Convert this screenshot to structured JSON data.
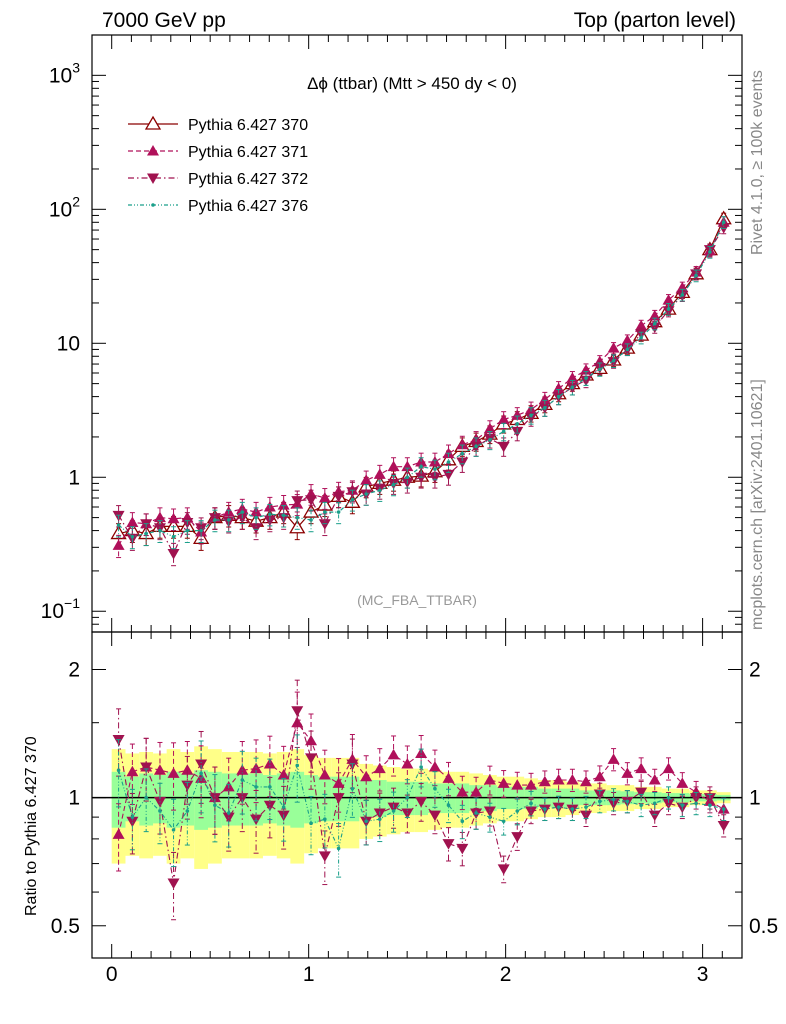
{
  "header": {
    "left": "7000 GeV pp",
    "right": "Top (parton level)"
  },
  "side_labels": {
    "top": "Rivet 4.1.0, ≥ 100k events",
    "bottom": "mcplots.cern.ch [arXiv:2401.10621]"
  },
  "chart_data": [
    {
      "type": "line",
      "panel": "main",
      "title": "Δϕ (ttbar) (Mtt > 450 dy < 0)",
      "watermark": "(MC_FBA_TTBAR)",
      "yscale": "log",
      "xlim": [
        -0.1,
        3.2
      ],
      "ylim": [
        0.07,
        2000
      ],
      "yticks": [
        {
          "value": 0.1,
          "base": "10",
          "exp": "−1"
        },
        {
          "value": 1,
          "base": "1",
          "exp": ""
        },
        {
          "value": 10,
          "base": "10",
          "exp": ""
        },
        {
          "value": 100,
          "base": "10",
          "exp": "2"
        },
        {
          "value": 1000,
          "base": "10",
          "exp": "3"
        }
      ],
      "x": [
        0.035,
        0.105,
        0.175,
        0.245,
        0.314,
        0.384,
        0.454,
        0.524,
        0.594,
        0.663,
        0.733,
        0.803,
        0.873,
        0.942,
        1.012,
        1.082,
        1.152,
        1.222,
        1.292,
        1.361,
        1.431,
        1.501,
        1.571,
        1.641,
        1.71,
        1.78,
        1.85,
        1.92,
        1.99,
        2.059,
        2.129,
        2.199,
        2.269,
        2.339,
        2.408,
        2.478,
        2.548,
        2.618,
        2.688,
        2.757,
        2.827,
        2.897,
        2.967,
        3.037,
        3.107
      ],
      "series": [
        {
          "name": "Pythia 6.427 370",
          "color": "#8b0000",
          "marker": "open-triangle-up",
          "dash": "solid",
          "values": [
            0.38,
            0.4,
            0.38,
            0.43,
            0.43,
            0.43,
            0.35,
            0.5,
            0.52,
            0.5,
            0.47,
            0.5,
            0.55,
            0.42,
            0.55,
            0.62,
            0.72,
            0.65,
            0.85,
            0.9,
            0.95,
            1.0,
            1.02,
            1.1,
            1.35,
            1.7,
            1.85,
            2.1,
            2.5,
            2.7,
            3.0,
            3.5,
            4.2,
            5.0,
            5.8,
            6.5,
            7.5,
            9.2,
            11.5,
            14.5,
            18,
            24,
            33,
            50,
            85
          ]
        },
        {
          "name": "Pythia 6.427 371",
          "color": "#b0105a",
          "marker": "filled-triangle-up",
          "dash": "dashed",
          "values": [
            0.31,
            0.46,
            0.45,
            0.5,
            0.49,
            0.5,
            0.39,
            0.5,
            0.55,
            0.58,
            0.55,
            0.6,
            0.62,
            0.63,
            0.75,
            0.7,
            0.78,
            0.8,
            0.95,
            1.05,
            1.2,
            1.2,
            1.3,
            1.3,
            1.5,
            1.75,
            1.9,
            2.3,
            2.7,
            2.9,
            3.2,
            3.8,
            4.6,
            5.5,
            6.3,
            7.3,
            9.2,
            10.5,
            13.5,
            16,
            21,
            26,
            34,
            49,
            80
          ]
        },
        {
          "name": "Pythia 6.427 372",
          "color": "#a0124f",
          "marker": "filled-triangle-down",
          "dash": "dashdot",
          "values": [
            0.52,
            0.35,
            0.45,
            0.42,
            0.27,
            0.46,
            0.42,
            0.5,
            0.47,
            0.5,
            0.42,
            0.48,
            0.5,
            0.67,
            0.68,
            0.45,
            0.72,
            0.78,
            0.75,
            0.83,
            0.9,
            0.92,
            1.0,
            1.0,
            1.05,
            1.3,
            1.7,
            1.95,
            1.7,
            2.2,
            2.8,
            3.3,
            4.0,
            4.7,
            5.3,
            6.6,
            7.3,
            9.0,
            11.8,
            13.2,
            17.5,
            22.8,
            33,
            50,
            73
          ]
        },
        {
          "name": "Pythia 6.427 376",
          "color": "#1a9f8a",
          "marker": "small-dot",
          "dash": "dashdotdot",
          "values": [
            0.44,
            0.36,
            0.38,
            0.4,
            0.36,
            0.4,
            0.4,
            0.48,
            0.48,
            0.55,
            0.5,
            0.53,
            0.52,
            0.5,
            0.48,
            0.55,
            0.55,
            0.68,
            0.75,
            0.8,
            0.88,
            1.0,
            1.2,
            1.15,
            1.3,
            1.5,
            1.7,
            1.9,
            2.2,
            2.5,
            2.9,
            3.3,
            4.0,
            4.7,
            5.5,
            6.4,
            7.4,
            9.0,
            11,
            14,
            18,
            23,
            32,
            48,
            80
          ]
        }
      ]
    },
    {
      "type": "line",
      "panel": "ratio",
      "ylabel": "Ratio to Pythia 6.427 370",
      "yscale": "log",
      "xlim": [
        -0.1,
        3.2
      ],
      "ylim": [
        0.42,
        2.45
      ],
      "yticks": [
        {
          "value": 0.5,
          "label": "0.5"
        },
        {
          "value": 1,
          "label": "1"
        },
        {
          "value": 2,
          "label": "2"
        }
      ],
      "xticks": [
        {
          "value": 0,
          "label": "0"
        },
        {
          "value": 1,
          "label": "1"
        },
        {
          "value": 2,
          "label": "2"
        },
        {
          "value": 3,
          "label": "3"
        }
      ],
      "band_colors": {
        "inner": "#99ff99",
        "outer": "#ffff88"
      },
      "band_inner": [
        0.15,
        0.12,
        0.14,
        0.13,
        0.15,
        0.14,
        0.16,
        0.15,
        0.14,
        0.14,
        0.14,
        0.13,
        0.14,
        0.15,
        0.13,
        0.12,
        0.12,
        0.12,
        0.1,
        0.1,
        0.09,
        0.09,
        0.09,
        0.08,
        0.08,
        0.08,
        0.07,
        0.07,
        0.06,
        0.06,
        0.06,
        0.05,
        0.05,
        0.05,
        0.04,
        0.04,
        0.04,
        0.035,
        0.03,
        0.03,
        0.025,
        0.025,
        0.02,
        0.02,
        0.015
      ],
      "band_outer": [
        0.3,
        0.27,
        0.28,
        0.27,
        0.3,
        0.28,
        0.32,
        0.3,
        0.28,
        0.28,
        0.28,
        0.27,
        0.28,
        0.3,
        0.26,
        0.24,
        0.24,
        0.24,
        0.2,
        0.19,
        0.18,
        0.17,
        0.17,
        0.16,
        0.15,
        0.15,
        0.14,
        0.13,
        0.12,
        0.12,
        0.11,
        0.1,
        0.1,
        0.09,
        0.08,
        0.08,
        0.07,
        0.07,
        0.06,
        0.06,
        0.05,
        0.05,
        0.04,
        0.04,
        0.03
      ],
      "series": [
        {
          "name": "Pythia 6.427 371",
          "values": [
            0.82,
            1.15,
            1.18,
            1.16,
            1.14,
            1.16,
            1.11,
            1.0,
            1.06,
            1.16,
            1.17,
            1.2,
            1.13,
            1.5,
            1.36,
            1.13,
            1.08,
            1.23,
            1.12,
            1.17,
            1.26,
            1.2,
            1.27,
            1.18,
            1.11,
            1.03,
            1.03,
            1.1,
            1.08,
            1.07,
            1.07,
            1.09,
            1.1,
            1.1,
            1.09,
            1.12,
            1.23,
            1.14,
            1.17,
            1.1,
            1.17,
            1.08,
            1.03,
            0.98,
            0.94
          ]
        },
        {
          "name": "Pythia 6.427 372",
          "values": [
            1.37,
            0.88,
            1.18,
            0.98,
            0.63,
            1.07,
            1.2,
            1.0,
            0.9,
            1.0,
            0.89,
            0.96,
            0.91,
            1.6,
            1.24,
            0.73,
            1.0,
            1.2,
            0.88,
            0.92,
            0.95,
            0.92,
            0.98,
            0.91,
            0.78,
            0.76,
            0.92,
            0.93,
            0.68,
            0.81,
            0.93,
            0.94,
            0.95,
            0.94,
            0.91,
            1.02,
            0.97,
            0.98,
            1.03,
            0.91,
            0.97,
            0.95,
            1.0,
            1.0,
            0.86
          ]
        },
        {
          "name": "Pythia 6.427 376",
          "values": [
            1.16,
            0.9,
            1.0,
            0.93,
            0.84,
            0.93,
            1.14,
            0.96,
            0.92,
            1.1,
            1.06,
            1.06,
            0.95,
            1.19,
            0.87,
            0.89,
            0.76,
            1.05,
            0.88,
            0.89,
            0.93,
            1.0,
            1.18,
            1.05,
            0.96,
            0.88,
            0.92,
            0.9,
            0.88,
            0.93,
            0.97,
            0.94,
            0.95,
            0.94,
            0.95,
            0.98,
            0.99,
            0.98,
            0.96,
            0.97,
            1.0,
            0.96,
            0.97,
            0.96,
            0.94
          ]
        }
      ]
    }
  ]
}
